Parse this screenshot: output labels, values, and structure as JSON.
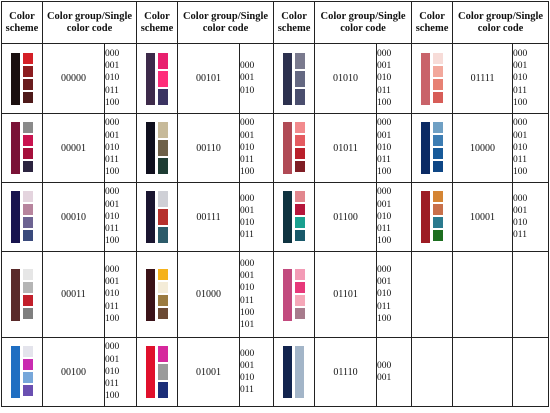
{
  "headers": {
    "scheme": "Color scheme",
    "group": "Color group/Single color code"
  },
  "codes5": [
    "000",
    "001",
    "010",
    "011",
    "100"
  ],
  "codes6": [
    "000",
    "001",
    "010",
    "011",
    "100",
    "101"
  ],
  "codes4": [
    "000",
    "001",
    "010",
    "011"
  ],
  "codes3": [
    "000",
    "001",
    "010"
  ],
  "codes2": [
    "000",
    "001"
  ],
  "entries": [
    {
      "group": "00000",
      "main": "#1a0f0f",
      "swatches": [
        "#d41f26",
        "#8c1c1f",
        "#6a1d1e",
        "#4e1a1a"
      ]
    },
    {
      "group": "00101",
      "main": "#3d2a4a",
      "swatches": [
        "#e8206e",
        "#ff2e7a",
        "#3b3462"
      ]
    },
    {
      "group": "01010",
      "main": "#2c304e",
      "swatches": [
        "#7a7a8e",
        "#646882",
        "#4a4e6e"
      ]
    },
    {
      "group": "01111",
      "main": "#c9636a",
      "swatches": [
        "#f7dcd8",
        "#f2a89c",
        "#e78173",
        "#d75d58"
      ]
    },
    {
      "group": "00001",
      "main": "#7a1237",
      "swatches": [
        "#8a8a8a",
        "#c9134f",
        "#a50f3b",
        "#2c2440"
      ]
    },
    {
      "group": "00110",
      "main": "#0f0f1e",
      "swatches": [
        "#c7ba9a",
        "#6e6048",
        "#1e3c33"
      ]
    },
    {
      "group": "01011",
      "main": "#b04a55",
      "swatches": [
        "#f28a8d",
        "#e45b60",
        "#b91f2a",
        "#7f1d24"
      ]
    },
    {
      "group": "10000",
      "main": "#0b2a64",
      "swatches": [
        "#6fa0c4",
        "#3d7db3",
        "#175a99",
        "#0e4685"
      ]
    },
    {
      "group": "00010",
      "main": "#18134e",
      "swatches": [
        "#e4d4de",
        "#b7849d",
        "#6d6392",
        "#3a4a7c"
      ]
    },
    {
      "group": "00111",
      "main": "#1a1530",
      "swatches": [
        "#cfd0d6",
        "#b6302c",
        "#2c5b6a"
      ]
    },
    {
      "group": "01100",
      "main": "#0f3340",
      "swatches": [
        "#e2878e",
        "#b5163b",
        "#19a08f",
        "#19596a"
      ]
    },
    {
      "group": "10001",
      "main": "#9d1c24",
      "swatches": [
        "#d58534",
        "#c8704a",
        "#2a7a8e",
        "#1c6e1f"
      ]
    },
    {
      "group": "00011",
      "main": "#5a2a2a",
      "swatches": [
        "#e6e6e6",
        "#b5b5b5",
        "#c21f2b",
        "#7f7f7f"
      ]
    },
    {
      "group": "01000",
      "main": "#3a1218",
      "swatches": [
        "#f5b21b",
        "#f4ecd8",
        "#9b7b40",
        "#6b4a34"
      ]
    },
    {
      "group": "01101",
      "main": "#c24a7e",
      "swatches": [
        "#f39bb6",
        "#e7387a",
        "#f5a7b8",
        "#a77b8c"
      ]
    },
    {
      "group": "00100",
      "main": "#1f6ec2",
      "swatches": [
        "#e4e4ec",
        "#c92bb0",
        "#77a7da",
        "#6a4fb1"
      ]
    },
    {
      "group": "01001",
      "main": "#e0102c",
      "swatches": [
        "#d6289c",
        "#9a9a9a",
        "#1c2e78"
      ]
    },
    {
      "group": "01110",
      "main": "#12244e",
      "swatches": [
        "#a3b5c8"
      ]
    }
  ]
}
